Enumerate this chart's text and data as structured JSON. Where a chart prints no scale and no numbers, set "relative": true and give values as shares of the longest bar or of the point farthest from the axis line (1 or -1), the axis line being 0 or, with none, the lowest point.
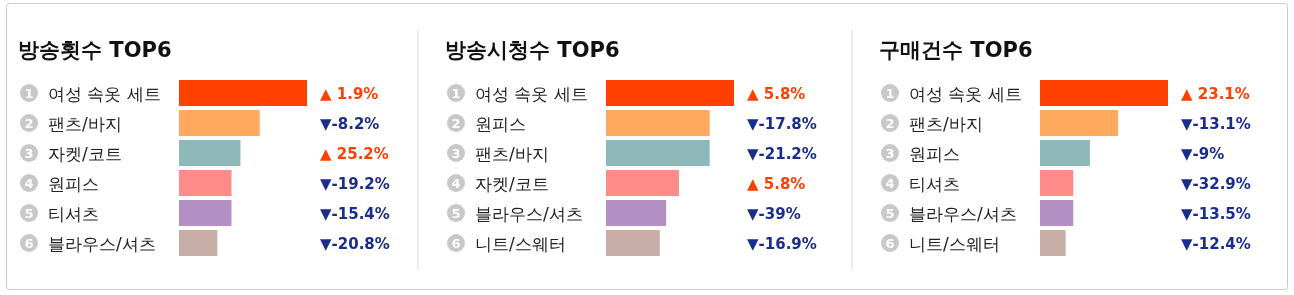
{
  "chart_data": [
    {
      "type": "bar",
      "orientation": "horizontal",
      "relative": true,
      "title": "방송횟수 TOP6",
      "categories": [
        "1 여성 속옷 세트",
        "2 팬츠/바지",
        "3 자켓/코트",
        "4 원피스",
        "5 티셔츠",
        "6 블라우스/셔츠"
      ],
      "values": [
        1,
        0.63,
        0.48,
        0.41,
        0.41,
        0.3
      ],
      "colors": [
        "#ff4000",
        "#ffa95f",
        "#8fb8b8",
        "#ff8a8a",
        "#b38fc4",
        "#c9aea7"
      ],
      "annotations": [
        "▲ 1.9%",
        "▼-8.2%",
        "▲ 25.2%",
        "▼-19.2%",
        "▼-15.4%",
        "▼-20.8%"
      ]
    },
    {
      "type": "bar",
      "orientation": "horizontal",
      "relative": true,
      "title": "방송시청수 TOP6",
      "categories": [
        "1 여성 속옷 세트",
        "2 원피스",
        "3 팬츠/바지",
        "4 자켓/코트",
        "5 블라우스/셔츠",
        "6 니트/스웨터"
      ],
      "values": [
        1,
        0.81,
        0.81,
        0.57,
        0.47,
        0.42
      ],
      "colors": [
        "#ff4000",
        "#ffa95f",
        "#8fb8b8",
        "#ff8a8a",
        "#b38fc4",
        "#c9aea7"
      ],
      "annotations": [
        "▲ 5.8%",
        "▼-17.8%",
        "▼-21.2%",
        "▲ 5.8%",
        "▼-39%",
        "▼-16.9%"
      ]
    },
    {
      "type": "bar",
      "orientation": "horizontal",
      "relative": true,
      "title": "구매건수 TOP6",
      "categories": [
        "1 여성 속옷 세트",
        "2 팬츠/바지",
        "3 원피스",
        "4 티셔츠",
        "5 블라우스/셔츠",
        "6 니트/스웨터"
      ],
      "values": [
        1,
        0.61,
        0.39,
        0.26,
        0.26,
        0.2
      ],
      "colors": [
        "#ff4000",
        "#ffa95f",
        "#8fb8b8",
        "#ff8a8a",
        "#b38fc4",
        "#c9aea7"
      ],
      "annotations": [
        "▲ 23.1%",
        "▼-13.1%",
        "▼-9%",
        "▼-32.9%",
        "▼-13.5%",
        "▼-12.4%"
      ]
    }
  ]
}
